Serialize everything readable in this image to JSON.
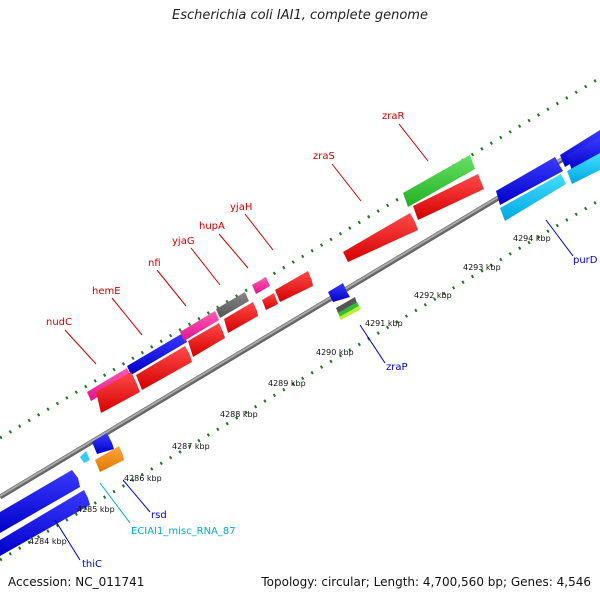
{
  "title": "Escherichia coli IAI1, complete genome",
  "footer": {
    "accession": "Accession: NC_011741",
    "summary": "Topology: circular; Length: 4,700,560 bp; Genes: 4,546"
  },
  "colors": {
    "backbone": "#8c8c8c",
    "ruler": "#1e7a1e",
    "label_red": "#cc0000",
    "label_blue": "#0000cc",
    "label_cyan": "#00aacc"
  },
  "scale": {
    "ticks": [
      "4284 kbp",
      "4285 kbp",
      "4286 kbp",
      "4287 kbp",
      "4288 kbp",
      "4289 kbp",
      "4290 kbp",
      "4291 kbp",
      "4292 kbp",
      "4293 kbp",
      "4294 kbp"
    ]
  },
  "gene_labels": [
    {
      "name": "nudC",
      "color": "red"
    },
    {
      "name": "hemE",
      "color": "red"
    },
    {
      "name": "nfi",
      "color": "red"
    },
    {
      "name": "yjaG",
      "color": "red"
    },
    {
      "name": "hupA",
      "color": "red"
    },
    {
      "name": "yjaH",
      "color": "red"
    },
    {
      "name": "zraS",
      "color": "red"
    },
    {
      "name": "zraR",
      "color": "red"
    },
    {
      "name": "thiC",
      "color": "blue"
    },
    {
      "name": "rsd",
      "color": "blue"
    },
    {
      "name": "ECIAI1_misc_RNA_87",
      "color": "cyan"
    },
    {
      "name": "zraP",
      "color": "blue"
    },
    {
      "name": "purD",
      "color": "blue"
    }
  ]
}
